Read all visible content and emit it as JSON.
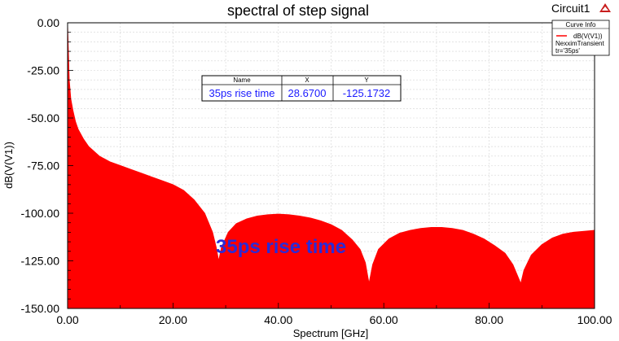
{
  "chart_data": {
    "type": "area",
    "title": "spectral of step signal",
    "project_label": "Circuit1",
    "xlabel": "Spectrum [GHz]",
    "ylabel": "dB(V(V1))",
    "xlim": [
      0,
      100
    ],
    "ylim": [
      -150,
      0
    ],
    "x_ticks": [
      0,
      20,
      40,
      60,
      80,
      100
    ],
    "x_tick_labels": [
      "0.00",
      "20.00",
      "40.00",
      "60.00",
      "80.00",
      "100.00"
    ],
    "y_ticks": [
      0,
      -25,
      -50,
      -75,
      -100,
      -125,
      -150
    ],
    "y_tick_labels": [
      "0.00",
      "-25.00",
      "-50.00",
      "-75.00",
      "-100.00",
      "-125.00",
      "-150.00"
    ],
    "grid": true,
    "fill_color": "#ff0000",
    "legend": {
      "title": "Curve Info",
      "placement": "top-right",
      "entries": [
        {
          "name": "dB(V(V1))",
          "lines": [
            "NexximTransient",
            "tr='35ps'"
          ]
        }
      ]
    },
    "series": [
      {
        "name": "dB(V(V1))",
        "x": [
          0.0,
          0.3,
          0.6,
          1.0,
          1.5,
          2.0,
          3.0,
          4.0,
          6.0,
          8.0,
          10.0,
          12.0,
          14.0,
          16.0,
          18.0,
          20.0,
          22.0,
          24.0,
          26.0,
          27.5,
          28.2,
          28.67,
          29.2,
          30.5,
          32.0,
          34.0,
          36.0,
          38.0,
          40.0,
          42.0,
          44.0,
          46.0,
          48.0,
          50.0,
          52.0,
          54.0,
          55.5,
          56.5,
          57.2,
          57.9,
          59.0,
          61.0,
          63.0,
          65.0,
          67.0,
          69.0,
          71.0,
          73.0,
          75.0,
          77.0,
          79.0,
          81.0,
          83.0,
          84.5,
          85.4,
          86.0,
          86.6,
          88.0,
          90.0,
          92.0,
          94.0,
          96.0,
          98.0,
          100.0
        ],
        "values": [
          -2,
          -30,
          -40,
          -46,
          -52,
          -56,
          -61,
          -65,
          -70,
          -73,
          -75,
          -77,
          -79,
          -81,
          -83,
          -85,
          -88,
          -93,
          -100,
          -110,
          -118,
          -125.1732,
          -118,
          -110,
          -105.5,
          -103,
          -101.5,
          -100.8,
          -100.5,
          -100.8,
          -101.5,
          -102.5,
          -104,
          -106,
          -109,
          -114,
          -119,
          -126,
          -137,
          -127,
          -119,
          -113.5,
          -110.5,
          -109,
          -108,
          -107.5,
          -107.5,
          -108,
          -109,
          -111,
          -113.5,
          -117,
          -121,
          -127,
          -133,
          -137,
          -130,
          -122,
          -116.5,
          -113,
          -111,
          -110,
          -109.5,
          -109
        ]
      }
    ],
    "marker_table": {
      "headers": [
        "Name",
        "X",
        "Y"
      ],
      "rows": [
        [
          "35ps rise time",
          "28.6700",
          "-125.1732"
        ]
      ]
    },
    "annotation": "35ps rise time"
  }
}
